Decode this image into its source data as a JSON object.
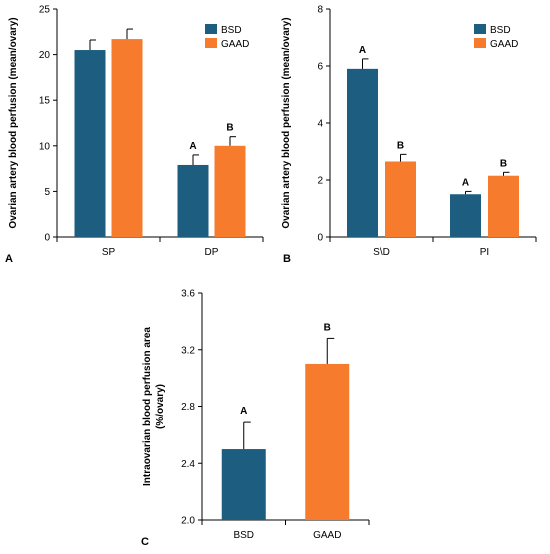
{
  "colors": {
    "BSD": "#1c5d80",
    "GAAD": "#f77b2c",
    "axis": "#000000"
  },
  "chart_data": [
    {
      "panel": "A",
      "type": "bar",
      "ylabel": "Ovarian artery blood perfusion (mean/ovary)",
      "ylim": [
        0,
        25
      ],
      "yticks": [
        "0",
        "5",
        "10",
        "15",
        "20",
        "25"
      ],
      "categories": [
        "SP",
        "DP"
      ],
      "legend": [
        "BSD",
        "GAAD"
      ],
      "legend_position": "top-right",
      "series": [
        {
          "name": "BSD",
          "values": [
            20.5,
            7.9
          ],
          "errors": [
            1.1,
            1.1
          ],
          "sig": [
            "",
            "A"
          ]
        },
        {
          "name": "GAAD",
          "values": [
            21.7,
            10.0
          ],
          "errors": [
            1.1,
            1.0
          ],
          "sig": [
            "",
            "B"
          ]
        }
      ]
    },
    {
      "panel": "B",
      "type": "bar",
      "ylabel": "Ovarian artery blood perfusion (mean/ovary)",
      "ylim": [
        0,
        8
      ],
      "yticks": [
        "0",
        "2",
        "4",
        "6",
        "8"
      ],
      "categories": [
        "S\\D",
        "PI"
      ],
      "legend": [
        "BSD",
        "GAAD"
      ],
      "legend_position": "top-right",
      "series": [
        {
          "name": "BSD",
          "values": [
            5.9,
            1.5
          ],
          "errors": [
            0.35,
            0.1
          ],
          "sig": [
            "A",
            "A"
          ]
        },
        {
          "name": "GAAD",
          "values": [
            2.65,
            2.15
          ],
          "errors": [
            0.25,
            0.12
          ],
          "sig": [
            "B",
            "B"
          ]
        }
      ]
    },
    {
      "panel": "C",
      "type": "bar",
      "ylabel": "Intraovarian blood perfusion area (%/ovary)",
      "ylim": [
        2.0,
        3.6
      ],
      "yticks": [
        "2.0",
        "2.4",
        "2.8",
        "3.2",
        "3.6"
      ],
      "categories": [
        "BSD",
        "GAAD"
      ],
      "values": [
        2.5,
        3.1
      ],
      "errors": [
        0.19,
        0.18
      ],
      "sig": [
        "A",
        "B"
      ]
    }
  ]
}
